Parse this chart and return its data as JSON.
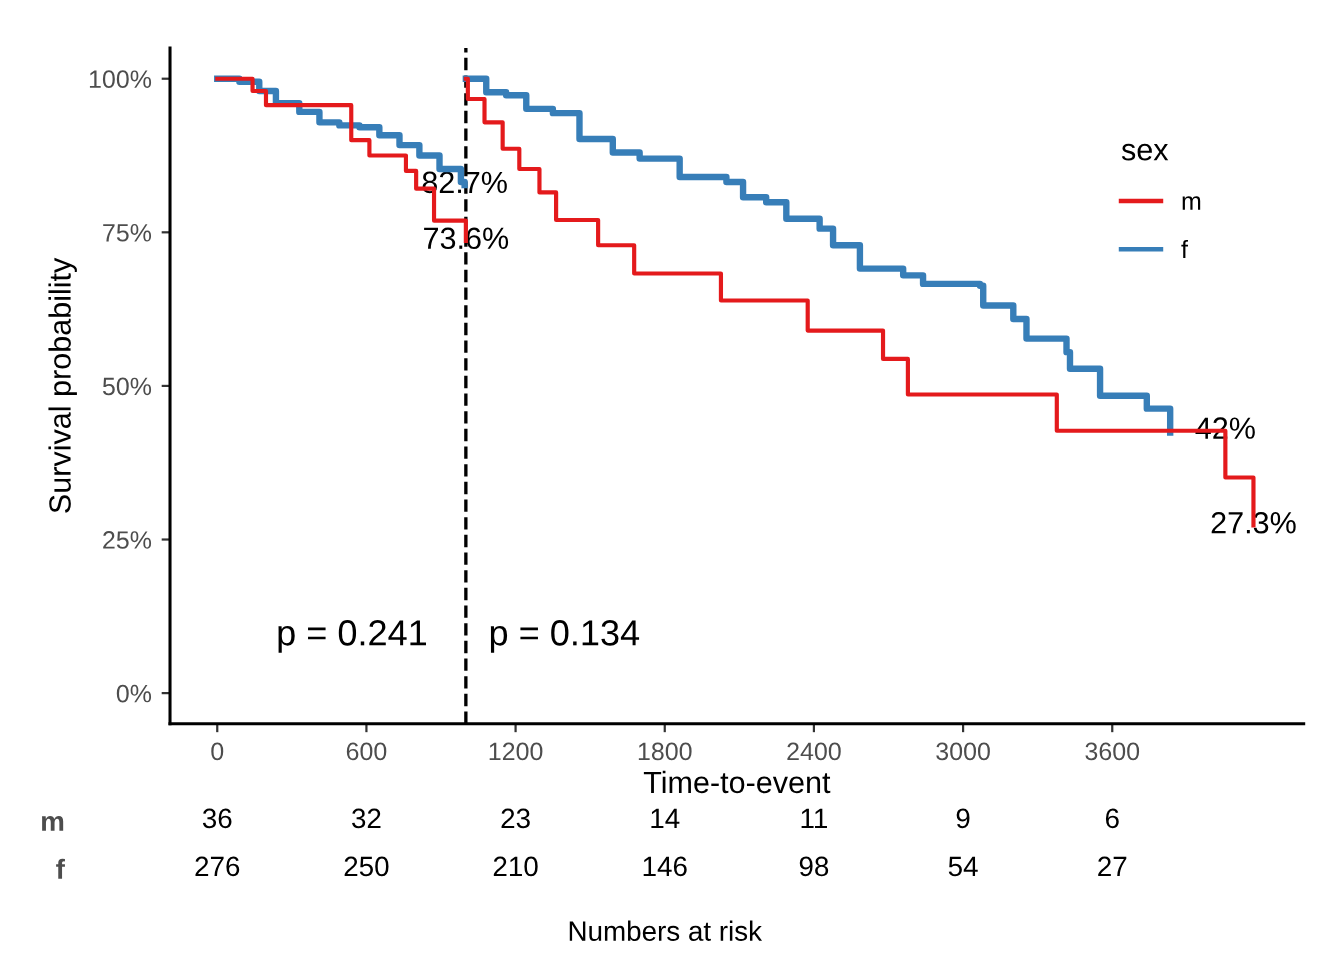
{
  "chart_data": [
    {
      "type": "step",
      "xlabel": "Time-to-event",
      "ylabel": "Survival probability",
      "legend_title": "sex",
      "legend": "top right",
      "grid": false,
      "line_style": "solid",
      "marker": "none",
      "xlim": [
        -190,
        4370
      ],
      "xticks": [
        0,
        600,
        1200,
        1800,
        2400,
        3000,
        3600
      ],
      "ylim": [
        -5,
        105
      ],
      "yticks": [
        {
          "value": 0,
          "label": "0%"
        },
        {
          "value": 25,
          "label": "25%"
        },
        {
          "value": 50,
          "label": "50%"
        },
        {
          "value": 75,
          "label": "75%"
        },
        {
          "value": 100,
          "label": "100%"
        }
      ],
      "series": [
        {
          "name": "m",
          "color": "#e41a1c",
          "x": [
            0,
            142,
            196,
            539,
            612,
            759,
            800,
            872,
            1000
          ],
          "values": [
            100,
            98.0,
            95.7,
            90.0,
            87.5,
            85.0,
            82.1,
            76.9,
            73.6
          ]
        },
        {
          "name": "f",
          "color": "#377eb8",
          "x": [
            0,
            89,
            169,
            236,
            330,
            411,
            491,
            572,
            652,
            733,
            813,
            894,
            980,
            995
          ],
          "values": [
            100,
            99.5,
            98.0,
            96.0,
            94.6,
            92.9,
            92.4,
            92.1,
            90.8,
            89.2,
            87.5,
            85.3,
            83.2,
            82.7
          ]
        },
        {
          "color": "#e41a1c",
          "x": [
            1000,
            1008,
            1075,
            1148,
            1215,
            1296,
            1363,
            1532,
            1677,
            2026,
            2375,
            2678,
            2778,
            3377,
            4055,
            4168
          ],
          "values": [
            100,
            96.7,
            92.9,
            88.6,
            85.3,
            81.5,
            77.0,
            72.9,
            68.3,
            63.9,
            59.0,
            54.4,
            48.6,
            42.7,
            35.1,
            27.3
          ]
        },
        {
          "color": "#377eb8",
          "x": [
            1000,
            1082,
            1162,
            1243,
            1350,
            1457,
            1591,
            1699,
            1860,
            2048,
            2115,
            2208,
            2289,
            2423,
            2477,
            2585,
            2759,
            2839,
            3068,
            3081,
            3202,
            3255,
            3416,
            3430,
            3551,
            3739,
            3833
          ],
          "values": [
            100,
            97.8,
            97.3,
            95.1,
            94.4,
            90.2,
            88.0,
            87.0,
            84.0,
            83.2,
            80.7,
            79.9,
            77.2,
            75.6,
            72.9,
            69.1,
            68.0,
            66.6,
            66.3,
            63.1,
            60.9,
            57.7,
            55.5,
            52.8,
            48.4,
            46.3,
            42.4
          ]
        }
      ],
      "ref_lines": [
        {
          "axis": "x",
          "value": 1000,
          "color": "#000000",
          "line_style": "dashed"
        }
      ],
      "annotations": [
        {
          "text": "82.7%",
          "x": 995,
          "y": 82.7
        },
        {
          "text": "73.6%",
          "x": 1000,
          "y": 73.6
        },
        {
          "text": "42%",
          "x": 4055,
          "y": 42.7
        },
        {
          "text": "27.3%",
          "x": 4168,
          "y": 27.3
        },
        "p = 0.241",
        "p = 0.134"
      ]
    },
    {
      "type": "heatmap",
      "xlabel": "Numbers at risk",
      "data_labels": true,
      "categories": [
        null,
        null,
        null,
        null,
        null,
        null,
        null
      ],
      "y_categories": [
        "m",
        "f"
      ],
      "cells": [
        [
          36,
          32,
          23,
          14,
          11,
          9,
          6
        ],
        [
          276,
          250,
          210,
          146,
          98,
          54,
          27
        ]
      ]
    }
  ]
}
